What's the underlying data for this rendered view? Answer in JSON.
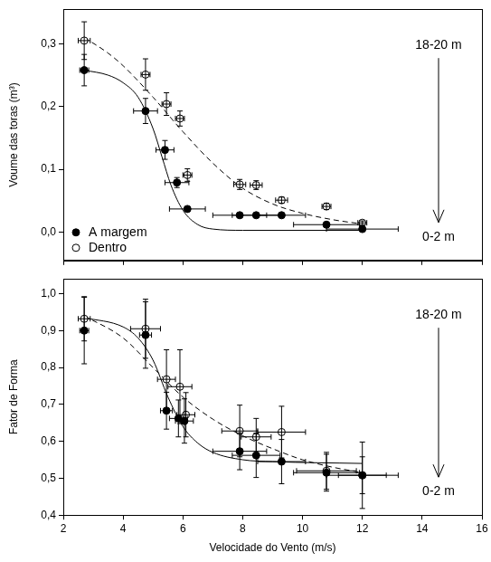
{
  "chart_data": [
    {
      "type": "scatter",
      "ylabel": "Voume das toras (m³)",
      "xlim": [
        2,
        16
      ],
      "xticks": [
        2,
        4,
        6,
        8,
        10,
        12,
        14,
        16
      ],
      "ylim": [
        -0.045,
        0.355
      ],
      "yticks": [
        {
          "value": 0,
          "label": "0,0"
        },
        {
          "value": 0.1,
          "label": "0,1"
        },
        {
          "value": 0.2,
          "label": "0,2"
        },
        {
          "value": 0.3,
          "label": "0,3"
        }
      ],
      "grid": false,
      "tick_labels": "y",
      "legend": "lower left",
      "annotations": [
        "18-20 m",
        "0-2 m"
      ],
      "series": [
        {
          "name": "A margem",
          "color": "#000000",
          "marker": "circle",
          "x": [
            2.7,
            4.75,
            5.4,
            5.8,
            6.15,
            7.9,
            8.45,
            9.3,
            10.8,
            12.0
          ],
          "values": [
            0.258,
            0.193,
            0.131,
            0.079,
            0.037,
            0.027,
            0.027,
            0.027,
            0.012,
            0.005
          ],
          "yerr": [
            0.025,
            0.02,
            0.015,
            0.008,
            0.003,
            0.003,
            0.003,
            0.003,
            0.003,
            0.003
          ],
          "xerr": [
            0.15,
            0.4,
            0.3,
            0.4,
            0.6,
            0.9,
            0.8,
            0.8,
            1.1,
            1.2
          ],
          "fit": {
            "line_style": "solid",
            "x": [
              2.7,
              3.5,
              4.0,
              4.5,
              5.0,
              5.3,
              5.6,
              6.0,
              6.5,
              7.0,
              8.0,
              12.0
            ],
            "values": [
              0.258,
              0.25,
              0.238,
              0.215,
              0.165,
              0.12,
              0.075,
              0.035,
              0.012,
              0.005,
              0.003,
              0.003
            ]
          }
        },
        {
          "name": "Dentro",
          "color": "#000000",
          "marker": "circle_open",
          "x": [
            2.7,
            4.75,
            5.45,
            5.9,
            6.15,
            7.9,
            8.45,
            9.3,
            10.8,
            12.0
          ],
          "values": [
            0.305,
            0.251,
            0.204,
            0.181,
            0.091,
            0.076,
            0.075,
            0.051,
            0.041,
            0.015
          ],
          "yerr": [
            0.03,
            0.025,
            0.018,
            0.012,
            0.01,
            0.008,
            0.007,
            0.005,
            0.005,
            0.003
          ],
          "xerr": [
            0.2,
            0.15,
            0.15,
            0.15,
            0.15,
            0.2,
            0.2,
            0.2,
            0.15,
            0.15
          ],
          "fit": {
            "line_style": "dashed",
            "x": [
              2.7,
              3.5,
              4.0,
              5.0,
              6.0,
              7.0,
              8.0,
              9.0,
              10.0,
              11.0,
              12.0
            ],
            "values": [
              0.31,
              0.285,
              0.265,
              0.215,
              0.16,
              0.11,
              0.07,
              0.045,
              0.03,
              0.02,
              0.013
            ]
          }
        }
      ]
    },
    {
      "type": "scatter",
      "ylabel": "Fator de Forma",
      "xlabel": "Velocidade do Vento (m/s)",
      "xlim": [
        2,
        16
      ],
      "xticks": [
        2,
        4,
        6,
        8,
        10,
        12,
        14,
        16
      ],
      "ylim": [
        0.4,
        1.04
      ],
      "yticks": [
        {
          "value": 0.4,
          "label": "0,4"
        },
        {
          "value": 0.5,
          "label": "0,5"
        },
        {
          "value": 0.6,
          "label": "0,6"
        },
        {
          "value": 0.7,
          "label": "0,7"
        },
        {
          "value": 0.8,
          "label": "0,8"
        },
        {
          "value": 0.9,
          "label": "0,9"
        },
        {
          "value": 1.0,
          "label": "1,0"
        }
      ],
      "grid": false,
      "annotations": [
        "18-20 m",
        "0-2 m"
      ],
      "series": [
        {
          "name": "A margem",
          "color": "#000000",
          "marker": "circle",
          "x": [
            2.7,
            4.75,
            5.45,
            5.85,
            6.05,
            7.9,
            8.45,
            9.3,
            10.8,
            12.0
          ],
          "values": [
            0.9,
            0.888,
            0.683,
            0.662,
            0.655,
            0.573,
            0.562,
            0.545,
            0.515,
            0.508
          ],
          "yerr": [
            0.09,
            0.09,
            0.05,
            0.05,
            0.06,
            0.05,
            0.06,
            0.06,
            0.05,
            0.05
          ],
          "xerr": [
            0.15,
            0.2,
            0.2,
            0.3,
            0.3,
            0.9,
            0.8,
            0.8,
            1.1,
            1.2
          ],
          "fit": {
            "line_style": "solid",
            "x": [
              2.7,
              4.0,
              4.5,
              5.0,
              5.5,
              6.0,
              6.5,
              7.0,
              8.0,
              9.0,
              12.0
            ],
            "values": [
              0.935,
              0.91,
              0.88,
              0.82,
              0.72,
              0.64,
              0.595,
              0.57,
              0.55,
              0.545,
              0.54
            ]
          }
        },
        {
          "name": "Dentro",
          "color": "#000000",
          "marker": "circle_open",
          "x": [
            2.7,
            4.75,
            5.45,
            5.9,
            6.1,
            7.9,
            8.45,
            9.3,
            10.8,
            12.0
          ],
          "values": [
            0.932,
            0.905,
            0.768,
            0.748,
            0.672,
            0.628,
            0.612,
            0.625,
            0.52,
            0.508
          ],
          "yerr": [
            0.06,
            0.08,
            0.08,
            0.1,
            0.06,
            0.07,
            0.05,
            0.07,
            0.05,
            0.09
          ],
          "xerr": [
            0.2,
            0.5,
            0.3,
            0.4,
            0.3,
            0.6,
            0.5,
            0.8,
            1.0,
            0.8
          ],
          "fit": {
            "line_style": "dashed",
            "x": [
              2.7,
              4.0,
              5.0,
              6.0,
              7.0,
              8.0,
              9.0,
              10.0,
              11.0,
              12.0
            ],
            "values": [
              0.94,
              0.88,
              0.8,
              0.72,
              0.66,
              0.615,
              0.58,
              0.55,
              0.53,
              0.515
            ]
          }
        }
      ]
    }
  ]
}
